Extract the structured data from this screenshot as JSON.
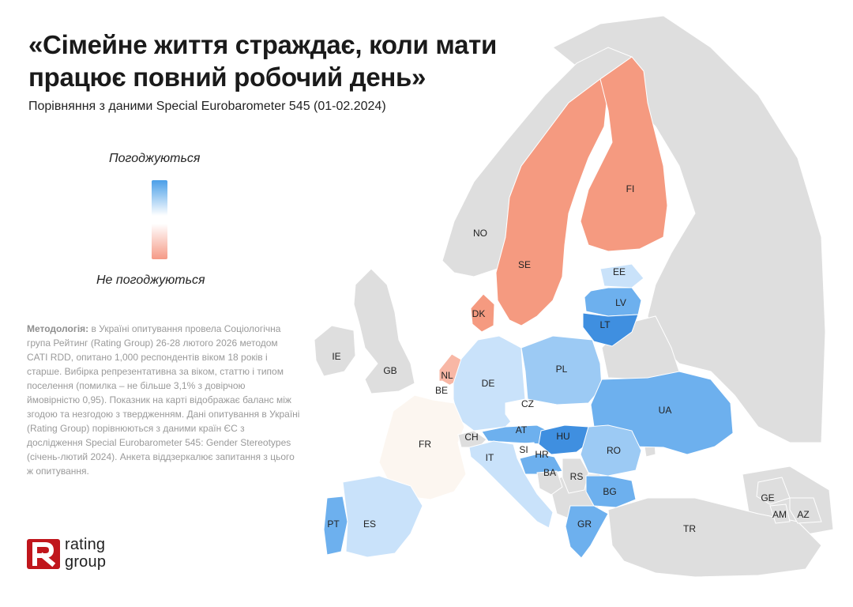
{
  "title": "«Сімейне життя страждає, коли мати працює повний робочий день»",
  "subtitle": "Порівняння з даними Special Eurobarometer 545 (01-02.2024)",
  "legend": {
    "agree_label": "Погоджуються",
    "disagree_label": "Не погоджуються",
    "colors": {
      "agree": "#4a9fe8",
      "neutral": "#ffffff",
      "disagree": "#f59a86"
    }
  },
  "methodology": {
    "heading": "Методологія:",
    "text": " в Україні опитування провела Соціологічна група Рейтинг (Rating Group) 26-28 лютого 2026 методом CATI RDD, опитано 1,000 респондентів віком 18 років і старше. Вибірка репрезентативна за віком, статтю і типом поселення (помилка – не більше 3,1% з довірчою ймовірністю 0,95). Показник на карті відображає баланс між згодою та незгодою з твердженням. Дані опитування в Україні (Rating Group) порівнюються з даними країн ЄС з дослідження Special Eurobarometer 545: Gender Stereotypes (січень-лютий 2024). Анкета віддзеркалює запитання з цього ж опитування."
  },
  "logo": {
    "line1": "rating",
    "line2": "group",
    "mark_color": "#c0161c"
  },
  "map_colors": {
    "no_data": "#dedede",
    "strong_agree": "#3f8fe0",
    "agree": "#6db0ee",
    "mild_agree": "#9ccaf4",
    "slight_agree": "#c9e2fa",
    "neutral": "#ffffff",
    "near_neutral_warm": "#fcf6f0",
    "mild_disagree": "#f8b7a5",
    "disagree": "#f59a80"
  },
  "countries": [
    {
      "code": "NO",
      "category": "no_data"
    },
    {
      "code": "SE",
      "category": "disagree"
    },
    {
      "code": "FI",
      "category": "disagree"
    },
    {
      "code": "EE",
      "category": "slight_agree"
    },
    {
      "code": "LV",
      "category": "agree"
    },
    {
      "code": "LT",
      "category": "strong_agree"
    },
    {
      "code": "IE",
      "category": "no_data"
    },
    {
      "code": "GB",
      "category": "no_data"
    },
    {
      "code": "DK",
      "category": "disagree"
    },
    {
      "code": "NL",
      "category": "mild_disagree"
    },
    {
      "code": "BE",
      "category": "neutral"
    },
    {
      "code": "DE",
      "category": "slight_agree"
    },
    {
      "code": "PL",
      "category": "mild_agree"
    },
    {
      "code": "CZ",
      "category": "neutral"
    },
    {
      "code": "UA",
      "category": "agree"
    },
    {
      "code": "FR",
      "category": "near_neutral_warm"
    },
    {
      "code": "CH",
      "category": "no_data"
    },
    {
      "code": "AT",
      "category": "agree"
    },
    {
      "code": "HU",
      "category": "strong_agree"
    },
    {
      "code": "SI",
      "category": "neutral"
    },
    {
      "code": "HR",
      "category": "agree"
    },
    {
      "code": "IT",
      "category": "slight_agree"
    },
    {
      "code": "RO",
      "category": "mild_agree"
    },
    {
      "code": "BA",
      "category": "no_data"
    },
    {
      "code": "RS",
      "category": "no_data"
    },
    {
      "code": "BG",
      "category": "agree"
    },
    {
      "code": "PT",
      "category": "agree"
    },
    {
      "code": "ES",
      "category": "slight_agree"
    },
    {
      "code": "GR",
      "category": "agree"
    },
    {
      "code": "TR",
      "category": "no_data"
    },
    {
      "code": "GE",
      "category": "no_data"
    },
    {
      "code": "AM",
      "category": "no_data"
    },
    {
      "code": "AZ",
      "category": "no_data"
    }
  ]
}
